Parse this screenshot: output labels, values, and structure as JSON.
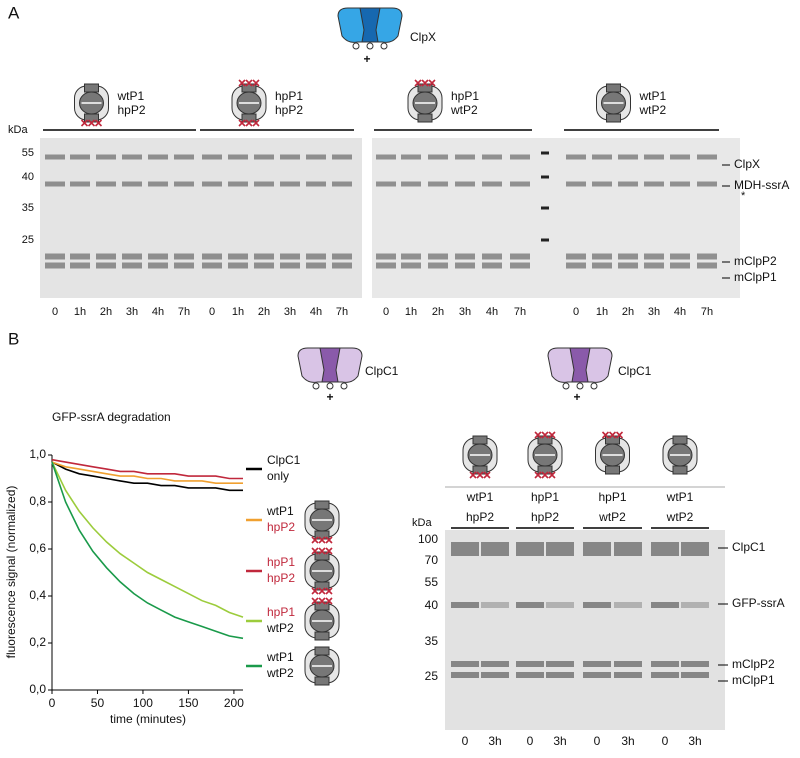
{
  "panel_a": {
    "label": "A",
    "enzyme": "ClpX",
    "plus": "+",
    "kda": "kDa",
    "markers": [
      55,
      40,
      35,
      25
    ],
    "groups": [
      {
        "p1": "wtP1",
        "p2": "hpP2"
      },
      {
        "p1": "hpP1",
        "p2": "hpP2"
      },
      {
        "p1": "hpP1",
        "p2": "wtP2"
      },
      {
        "p1": "wtP1",
        "p2": "wtP2"
      }
    ],
    "lanes": [
      "0",
      "1h",
      "2h",
      "3h",
      "4h",
      "7h"
    ],
    "bands": [
      "ClpX",
      "MDH-ssrA",
      "mClpP2",
      "mClpP1"
    ],
    "note": "*"
  },
  "panel_b": {
    "label": "B",
    "enzyme": "ClpC1",
    "plus": "+",
    "gel": {
      "enzyme": "ClpC1",
      "plus": "+",
      "kda": "kDa",
      "markers": [
        100,
        70,
        55,
        40,
        35,
        25
      ],
      "groups": [
        {
          "p1": "wtP1",
          "p2": "hpP2"
        },
        {
          "p1": "hpP1",
          "p2": "hpP2"
        },
        {
          "p1": "hpP1",
          "p2": "wtP2"
        },
        {
          "p1": "wtP1",
          "p2": "wtP2"
        }
      ],
      "lanes": [
        "0",
        "3h"
      ],
      "bands": [
        "ClpC1",
        "GFP-ssrA",
        "mClpP2",
        "mClpP1"
      ]
    }
  },
  "chart_data": {
    "type": "line",
    "title": "GFP-ssrA degradation",
    "x_label": "time (minutes)",
    "y_label": "fluorescence signal (normalized)",
    "x": [
      0,
      15,
      30,
      45,
      60,
      75,
      90,
      105,
      120,
      135,
      150,
      165,
      180,
      195,
      210
    ],
    "xlim": [
      0,
      210
    ],
    "xticks": [
      0,
      50,
      100,
      150,
      200
    ],
    "ylim": [
      0,
      1.0
    ],
    "yticks": [
      {
        "value": 0,
        "label": "0,0"
      },
      {
        "value": 0.2,
        "label": "0,2"
      },
      {
        "value": 0.4,
        "label": "0,4"
      },
      {
        "value": 0.6,
        "label": "0,6"
      },
      {
        "value": 0.8,
        "label": "0,8"
      },
      {
        "value": 1.0,
        "label": "1,0"
      }
    ],
    "series": [
      {
        "name": "ClpC1 only",
        "color": "#000000",
        "values": [
          0.97,
          0.94,
          0.92,
          0.91,
          0.9,
          0.89,
          0.88,
          0.88,
          0.87,
          0.87,
          0.86,
          0.86,
          0.86,
          0.85,
          0.85
        ]
      },
      {
        "name": "wtP1 hpP2",
        "color": "#f0a030",
        "values": [
          0.97,
          0.95,
          0.94,
          0.93,
          0.92,
          0.91,
          0.91,
          0.9,
          0.9,
          0.89,
          0.89,
          0.89,
          0.88,
          0.88,
          0.88
        ]
      },
      {
        "name": "hpP1 hpP2",
        "color": "#c0283c",
        "values": [
          0.98,
          0.97,
          0.96,
          0.95,
          0.94,
          0.93,
          0.93,
          0.92,
          0.92,
          0.92,
          0.91,
          0.91,
          0.91,
          0.9,
          0.9
        ]
      },
      {
        "name": "hpP1 wtP2",
        "color": "#9ccc3c",
        "values": [
          0.97,
          0.85,
          0.76,
          0.69,
          0.63,
          0.58,
          0.54,
          0.5,
          0.47,
          0.44,
          0.41,
          0.38,
          0.36,
          0.33,
          0.31
        ]
      },
      {
        "name": "wtP1 wtP2",
        "color": "#1a9a4a",
        "values": [
          0.97,
          0.8,
          0.68,
          0.59,
          0.52,
          0.46,
          0.41,
          0.37,
          0.34,
          0.31,
          0.29,
          0.27,
          0.25,
          0.23,
          0.22
        ]
      }
    ]
  }
}
